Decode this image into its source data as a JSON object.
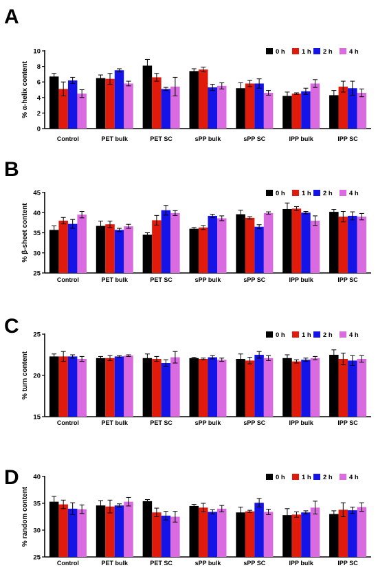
{
  "legend": {
    "items": [
      "0 h",
      "1 h",
      "2 h",
      "4 h"
    ]
  },
  "colors": {
    "0 h": "#000000",
    "1 h": "#e01b0c",
    "2 h": "#1414e6",
    "4 h": "#d96ae0"
  },
  "chart_data": [
    {
      "panel": "A",
      "type": "bar",
      "ylabel": "% α-helix content",
      "ylim": [
        0,
        10
      ],
      "yticks": [
        0,
        2,
        4,
        6,
        8,
        10
      ],
      "categories": [
        "Control",
        "PET bulk",
        "PET SC",
        "sPP bulk",
        "sPP SC",
        "IPP bulk",
        "IPP SC"
      ],
      "series": [
        {
          "name": "0 h",
          "values": [
            6.7,
            6.5,
            8.1,
            7.4,
            5.2,
            4.2,
            4.3
          ],
          "errors": [
            0.4,
            0.4,
            0.8,
            0.3,
            0.7,
            0.5,
            0.6
          ]
        },
        {
          "name": "1 h",
          "values": [
            5.1,
            6.4,
            6.6,
            7.6,
            5.8,
            4.5,
            5.4
          ],
          "errors": [
            0.9,
            0.7,
            0.5,
            0.3,
            0.4,
            0.1,
            0.7
          ]
        },
        {
          "name": "2 h",
          "values": [
            6.2,
            7.5,
            5.1,
            5.3,
            5.8,
            4.8,
            5.2
          ],
          "errors": [
            0.4,
            0.2,
            0.2,
            0.4,
            0.6,
            0.4,
            0.9
          ]
        },
        {
          "name": "4 h",
          "values": [
            4.5,
            5.8,
            5.4,
            5.5,
            4.6,
            5.8,
            4.6
          ],
          "errors": [
            0.5,
            0.3,
            1.2,
            0.4,
            0.3,
            0.5,
            0.5
          ]
        }
      ]
    },
    {
      "panel": "B",
      "type": "bar",
      "ylabel": "% β-sheet content",
      "ylim": [
        25,
        45
      ],
      "yticks": [
        25,
        30,
        35,
        40,
        45
      ],
      "categories": [
        "Control",
        "PET bulk",
        "PET SC",
        "sPP bulk",
        "sPP SC",
        "IPP bulk",
        "IPP SC"
      ],
      "series": [
        {
          "name": "0 h",
          "values": [
            35.7,
            36.7,
            34.5,
            36.0,
            39.6,
            40.9,
            40.2
          ],
          "errors": [
            1.0,
            1.2,
            0.5,
            0.3,
            1.0,
            1.5,
            0.6
          ]
        },
        {
          "name": "1 h",
          "values": [
            38.0,
            37.1,
            38.1,
            36.3,
            38.7,
            41.0,
            39.0
          ],
          "errors": [
            0.8,
            0.8,
            1.2,
            0.5,
            0.3,
            0.5,
            1.3
          ]
        },
        {
          "name": "2 h",
          "values": [
            37.2,
            35.7,
            40.6,
            39.2,
            36.5,
            40.0,
            39.2
          ],
          "errors": [
            1.1,
            0.4,
            1.2,
            0.4,
            0.5,
            0.3,
            1.0
          ]
        },
        {
          "name": "4 h",
          "values": [
            39.5,
            36.6,
            39.9,
            38.6,
            39.9,
            38.0,
            39.0
          ],
          "errors": [
            0.8,
            0.5,
            0.6,
            0.6,
            0.3,
            1.2,
            0.8
          ]
        }
      ]
    },
    {
      "panel": "C",
      "type": "bar",
      "ylabel": "% turn content",
      "ylim": [
        15,
        25
      ],
      "yticks": [
        15,
        20,
        25
      ],
      "categories": [
        "Control",
        "PET bulk",
        "PET SC",
        "sPP bulk",
        "sPP SC",
        "IPP bulk",
        "IPP SC"
      ],
      "series": [
        {
          "name": "0 h",
          "values": [
            22.3,
            22.1,
            22.1,
            22.1,
            22.0,
            22.1,
            22.5
          ],
          "errors": [
            0.3,
            0.2,
            0.5,
            0.1,
            0.6,
            0.4,
            0.6
          ]
        },
        {
          "name": "1 h",
          "values": [
            22.3,
            22.1,
            22.0,
            22.0,
            21.8,
            21.7,
            22.0
          ],
          "errors": [
            0.6,
            0.3,
            0.3,
            0.1,
            0.4,
            0.2,
            0.7
          ]
        },
        {
          "name": "2 h",
          "values": [
            22.3,
            22.3,
            21.5,
            22.2,
            22.5,
            21.9,
            21.8
          ],
          "errors": [
            0.2,
            0.1,
            0.4,
            0.2,
            0.4,
            0.2,
            0.6
          ]
        },
        {
          "name": "4 h",
          "values": [
            22.0,
            22.4,
            22.2,
            21.9,
            22.1,
            22.1,
            22.0
          ],
          "errors": [
            0.3,
            0.1,
            0.7,
            0.2,
            0.3,
            0.2,
            0.4
          ]
        }
      ]
    },
    {
      "panel": "D",
      "type": "bar",
      "ylabel": "% random content",
      "ylim": [
        25,
        40
      ],
      "yticks": [
        25,
        30,
        35,
        40
      ],
      "categories": [
        "Control",
        "PET bulk",
        "PET SC",
        "sPP bulk",
        "sPP SC",
        "IPP bulk",
        "IPP SC"
      ],
      "series": [
        {
          "name": "0 h",
          "values": [
            35.3,
            34.6,
            35.4,
            34.5,
            33.3,
            32.8,
            33.0
          ],
          "errors": [
            1.0,
            0.9,
            0.3,
            0.3,
            1.0,
            1.2,
            0.6
          ]
        },
        {
          "name": "1 h",
          "values": [
            34.8,
            34.4,
            33.3,
            34.2,
            33.5,
            32.9,
            33.8
          ],
          "errors": [
            0.8,
            1.2,
            0.8,
            0.8,
            0.2,
            0.5,
            1.3
          ]
        },
        {
          "name": "2 h",
          "values": [
            34.0,
            34.6,
            32.7,
            33.4,
            35.1,
            33.3,
            33.7
          ],
          "errors": [
            1.1,
            0.3,
            0.8,
            0.4,
            0.8,
            0.3,
            0.6
          ]
        },
        {
          "name": "4 h",
          "values": [
            33.9,
            35.3,
            32.5,
            34.0,
            33.4,
            34.2,
            34.3
          ],
          "errors": [
            0.8,
            0.8,
            1.0,
            0.6,
            0.5,
            1.2,
            0.8
          ]
        }
      ]
    }
  ]
}
